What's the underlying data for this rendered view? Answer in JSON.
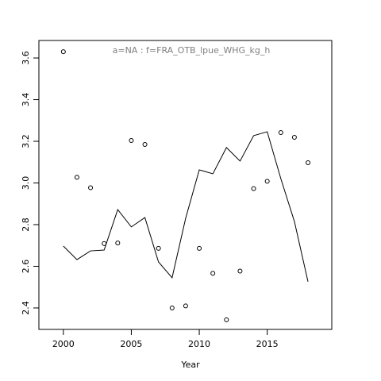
{
  "chart_data": {
    "type": "scatter-line",
    "title": "a=NA  :  f=FRA_OTB_lpue_WHG_kg_h",
    "x_label": "Year",
    "x": [
      2000,
      2001,
      2002,
      2003,
      2004,
      2005,
      2006,
      2007,
      2008,
      2009,
      2010,
      2011,
      2012,
      2013,
      2014,
      2015,
      2016,
      2017,
      2018
    ],
    "series": [
      {
        "type": "points",
        "color": "#000000",
        "values": [
          3.63,
          3.027,
          2.977,
          2.709,
          2.712,
          3.204,
          3.185,
          2.686,
          2.4,
          2.41,
          2.686,
          2.566,
          2.343,
          2.577,
          2.973,
          3.008,
          3.242,
          3.219,
          3.097
        ]
      },
      {
        "type": "line",
        "color": "#000000",
        "values": [
          2.697,
          2.632,
          2.674,
          2.678,
          2.872,
          2.789,
          2.834,
          2.621,
          2.545,
          2.831,
          3.063,
          3.044,
          3.17,
          3.105,
          3.227,
          3.246,
          3.021,
          2.815,
          2.526
        ]
      }
    ],
    "xlim": [
      1998.2,
      2019.75
    ],
    "xticks": [
      2000,
      2005,
      2010,
      2015
    ],
    "ylim": [
      2.297,
      3.684
    ],
    "yticks": [
      2.4,
      2.6,
      2.8,
      {
        "value": 3,
        "label": "3.0"
      },
      3.2,
      3.4,
      3.6
    ],
    "title_color": "#808080"
  }
}
